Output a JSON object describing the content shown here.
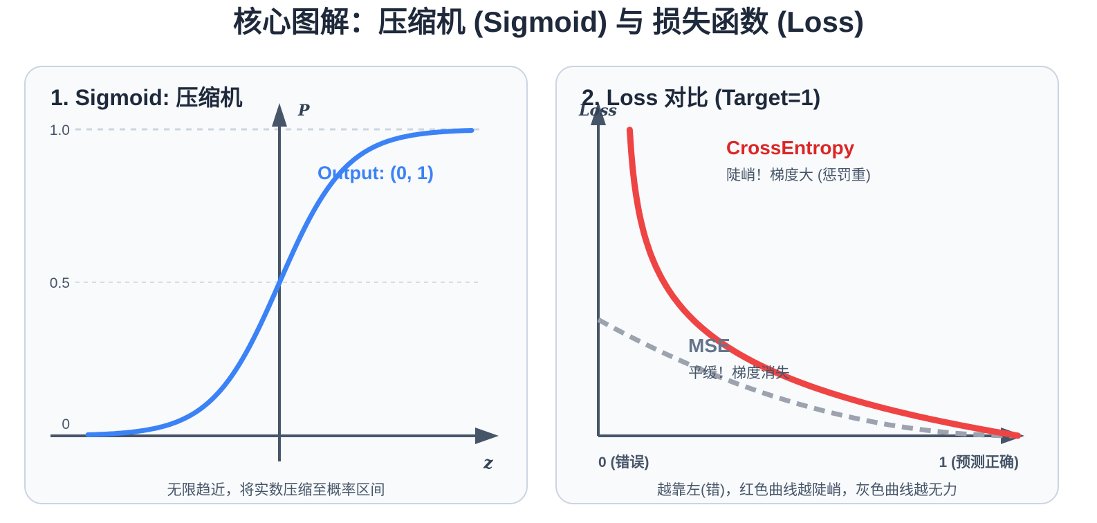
{
  "title": "核心图解：压缩机 (Sigmoid) 与 损失函数 (Loss)",
  "panels": {
    "sigmoid": {
      "title": "1. Sigmoid: 压缩机",
      "x_axis_label": "z",
      "y_axis_label": "P",
      "y_ticks": [
        "1.0",
        "0.5",
        "0"
      ],
      "curve_label": "Output: (0, 1)",
      "caption": "无限趋近，将实数压缩至概率区间",
      "colors": {
        "curve": "#3b82f6",
        "axis": "#475569",
        "grid": "#cbd5e1"
      }
    },
    "loss": {
      "title": "2. Loss 对比 (Target=1)",
      "y_axis_label": "Loss",
      "x_left_label": "0 (错误)",
      "x_right_label": "1 (预测正确)",
      "ce_label": "CrossEntropy",
      "ce_note": "陡峭！梯度大 (惩罚重)",
      "mse_label": "MSE",
      "mse_note": "平缓！梯度消失",
      "caption": "越靠左(错)，红色曲线越陡峭，灰色曲线越无力",
      "colors": {
        "ce": "#ef4444",
        "ce_label": "#dc2626",
        "mse": "#9ca3af",
        "mse_label": "#64748b",
        "axis": "#475569"
      }
    }
  }
}
